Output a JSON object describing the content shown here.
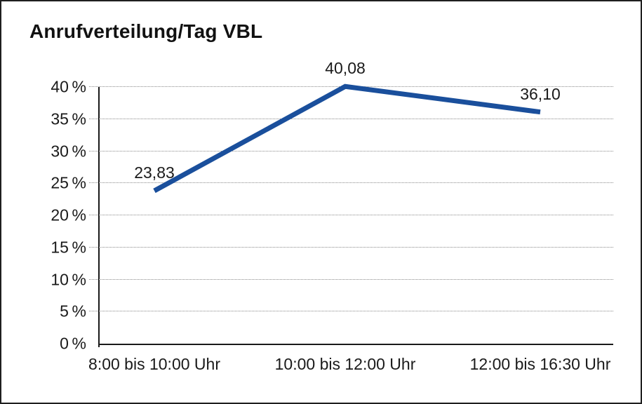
{
  "title": "Anrufverteilung/Tag VBL",
  "chart_data": {
    "type": "line",
    "title": "Anrufverteilung/Tag VBL",
    "categories": [
      "8:00 bis 10:00 Uhr",
      "10:00 bis 12:00 Uhr",
      "12:00 bis 16:30 Uhr"
    ],
    "values": [
      23.83,
      40.08,
      36.1
    ],
    "point_labels": [
      "23,83",
      "40,08",
      "36,10"
    ],
    "xlabel": "",
    "ylabel": "",
    "ylim": [
      0,
      40
    ],
    "ytick_step": 5,
    "ytick_labels": [
      "0 %",
      "5 %",
      "10 %",
      "15 %",
      "20 %",
      "25 %",
      "30 %",
      "35 %",
      "40 %"
    ],
    "grid": "horizontal-dotted",
    "legend": "none",
    "line_color": "#1A4F9C"
  },
  "colors": {
    "line": "#1A4F9C",
    "grid": "#8A8A8A",
    "axis": "#1A1A1A",
    "text": "#1A1A1A",
    "border": "#1F1F1F",
    "background": "#FFFFFF"
  }
}
